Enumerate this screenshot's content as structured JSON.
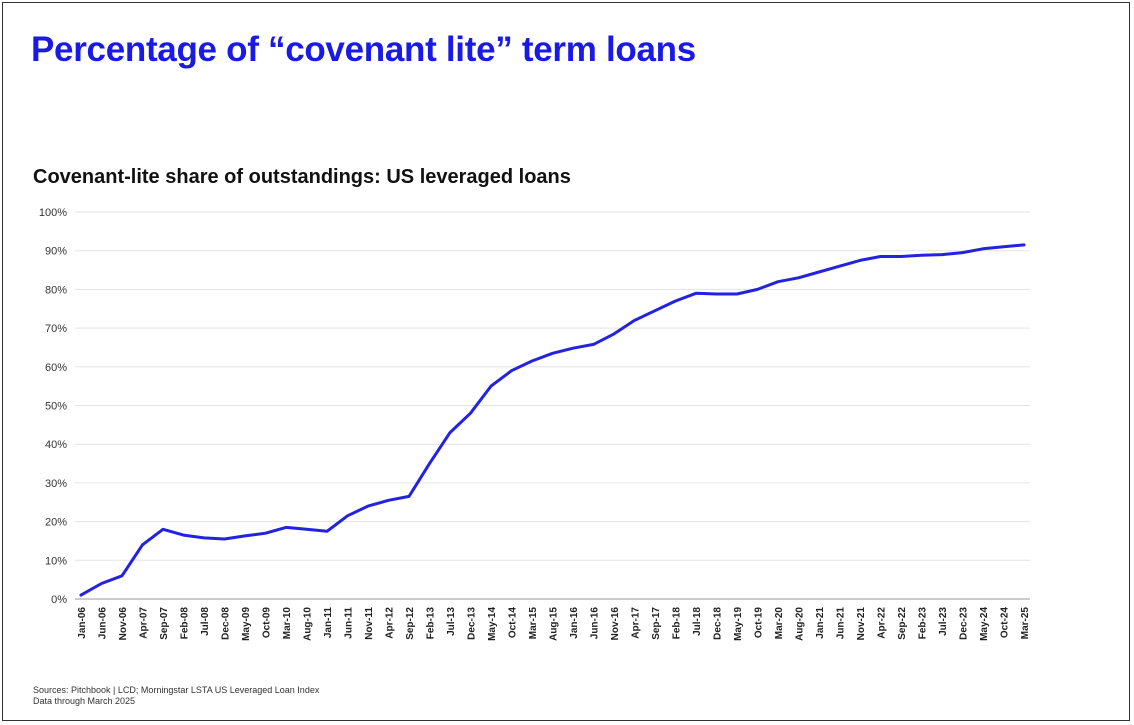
{
  "header": {
    "title": "Percentage of “covenant lite” term loans"
  },
  "footer": {
    "source": "Sources: Pitchbook  |  LCD; Morningstar LSTA US Leveraged Loan Index",
    "note": "Data through March 2025"
  },
  "colors": {
    "title": "#1a1ae6",
    "line": "#2222e0",
    "grid": "#e3e3e3"
  },
  "chart_data": {
    "type": "line",
    "title": "Covenant-lite share of outstandings: US leveraged loans",
    "xlabel": "",
    "ylabel": "",
    "ylim": [
      0,
      100
    ],
    "yticks": [
      "0%",
      "10%",
      "20%",
      "30%",
      "40%",
      "50%",
      "60%",
      "70%",
      "80%",
      "90%",
      "100%"
    ],
    "xticks": [
      "Jan-06",
      "Jun-06",
      "Nov-06",
      "Apr-07",
      "Sep-07",
      "Feb-08",
      "Jul-08",
      "Dec-08",
      "May-09",
      "Oct-09",
      "Mar-10",
      "Aug-10",
      "Jan-11",
      "Jun-11",
      "Nov-11",
      "Apr-12",
      "Sep-12",
      "Feb-13",
      "Jul-13",
      "Dec-13",
      "May-14",
      "Oct-14",
      "Mar-15",
      "Aug-15",
      "Jan-16",
      "Jun-16",
      "Nov-16",
      "Apr-17",
      "Sep-17",
      "Feb-18",
      "Jul-18",
      "Dec-18",
      "May-19",
      "Oct-19",
      "Mar-20",
      "Aug-20",
      "Jan-21",
      "Jun-21",
      "Nov-21",
      "Apr-22",
      "Sep-22",
      "Feb-23",
      "Jul-23",
      "Dec-23",
      "May-24",
      "Oct-24",
      "Mar-25"
    ],
    "grid": true,
    "legend": "none",
    "series": [
      {
        "x": [
          "Jan-06",
          "Jun-06",
          "Nov-06",
          "Apr-07",
          "Sep-07",
          "Feb-08",
          "Jul-08",
          "Dec-08",
          "May-09",
          "Oct-09",
          "Mar-10",
          "Aug-10",
          "Jan-11",
          "Jun-11",
          "Nov-11",
          "Apr-12",
          "Sep-12",
          "Feb-13",
          "Jul-13",
          "Dec-13",
          "May-14",
          "Oct-14",
          "Mar-15",
          "Aug-15",
          "Jan-16",
          "Jun-16",
          "Nov-16",
          "Apr-17",
          "Sep-17",
          "Feb-18",
          "Jul-18",
          "Dec-18",
          "May-19",
          "Oct-19",
          "Mar-20",
          "Aug-20",
          "Jan-21",
          "Jun-21",
          "Nov-21",
          "Apr-22",
          "Sep-22",
          "Feb-23",
          "Jul-23",
          "Dec-23",
          "May-24",
          "Oct-24",
          "Mar-25"
        ],
        "values": [
          1,
          4,
          6,
          14,
          18,
          16.5,
          15.8,
          15.5,
          16.3,
          17,
          18.5,
          18,
          17.5,
          21.5,
          24,
          25.5,
          26.5,
          35,
          43,
          48,
          55,
          59,
          61.5,
          63.5,
          64.8,
          65.8,
          68.5,
          72,
          74.5,
          77,
          79,
          78.8,
          78.8,
          80,
          82,
          83,
          84.5,
          86,
          87.5,
          88.5,
          88.5,
          88.8,
          89,
          89.5,
          90.5,
          91,
          91.5
        ]
      }
    ]
  }
}
